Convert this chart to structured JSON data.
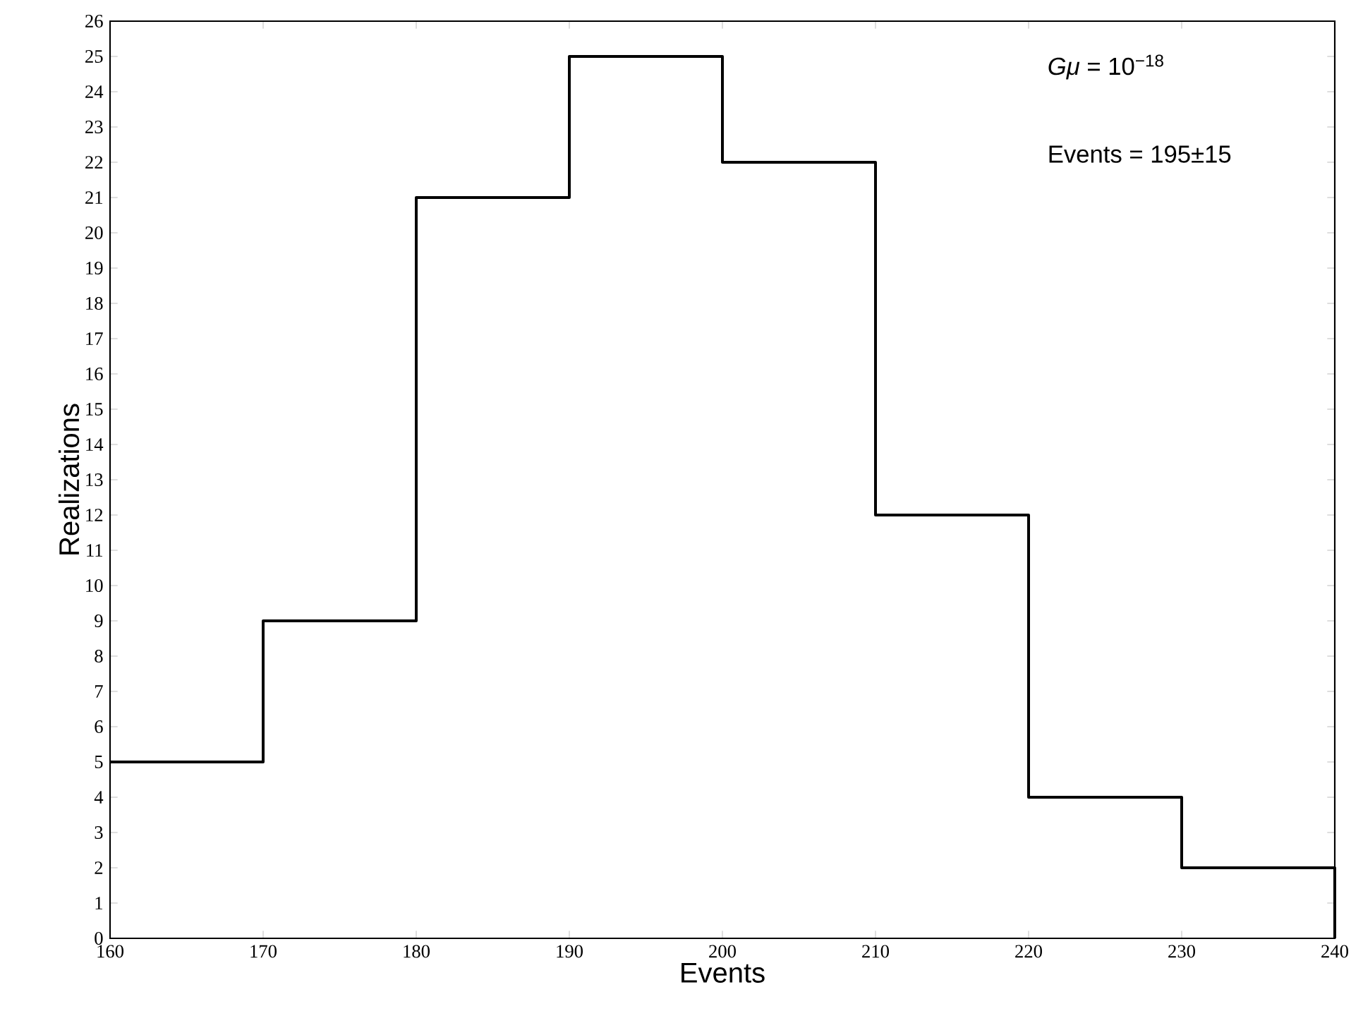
{
  "chart_data": {
    "type": "histogram",
    "bins": [
      160,
      170,
      180,
      190,
      200,
      210,
      220,
      230,
      240
    ],
    "values": [
      5,
      9,
      21,
      25,
      22,
      12,
      4,
      2
    ],
    "color": "#000000",
    "xlabel": "Events",
    "ylabel": "Realizations",
    "xlim": [
      160,
      240
    ],
    "ylim": [
      0,
      26
    ],
    "xticks": [
      160,
      170,
      180,
      190,
      200,
      210,
      220,
      230,
      240
    ],
    "yticks": [
      0,
      1,
      2,
      3,
      4,
      5,
      6,
      7,
      8,
      9,
      10,
      11,
      12,
      13,
      14,
      15,
      16,
      17,
      18,
      19,
      20,
      21,
      22,
      23,
      24,
      25,
      26
    ],
    "annotations": [
      "*Gμ* = 10$^{−18}$",
      "Events = 195±15"
    ]
  }
}
